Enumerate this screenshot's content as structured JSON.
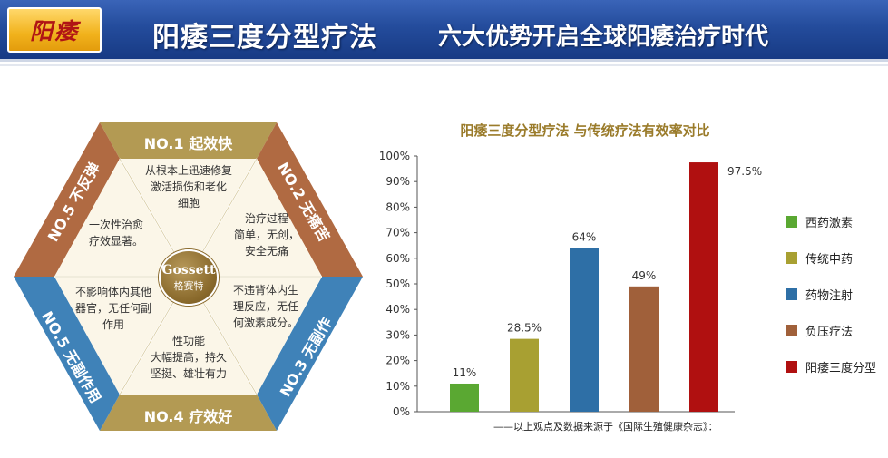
{
  "header": {
    "logo_text": "阳痿",
    "title": "阳痿三度分型疗法",
    "subtitle": "六大优势开启全球阳痿治疗时代"
  },
  "hexagon": {
    "center": {
      "brand": "Gossett",
      "sub": "格赛特"
    },
    "badges": [
      {
        "label": "NO.1  起效快",
        "color": "#b39a53"
      },
      {
        "label": "NO.2 无痛苦",
        "color": "#b06a42"
      },
      {
        "label": "NO.3 无副作",
        "color": "#3f82b8"
      },
      {
        "label": "NO.4  疗效好",
        "color": "#b39a53"
      },
      {
        "label": "NO.5 无副作用",
        "color": "#3f82b8"
      },
      {
        "label": "NO.5 不反弹",
        "color": "#b06a42"
      }
    ],
    "texts": [
      [
        "从根本上迅速修复",
        "激活损伤和老化",
        "细胞"
      ],
      [
        "治疗过程",
        "简单，无创，",
        "安全无痛"
      ],
      [
        "不违背体内生",
        "理反应，无任",
        "何激素成分。"
      ],
      [
        "性功能",
        "大幅提高，持久",
        "坚挺、雄壮有力"
      ],
      [
        "不影响体内其他",
        "器官，无任何副",
        "作用"
      ],
      [
        "一次性治愈",
        "疗效显著。"
      ]
    ]
  },
  "chart_data": {
    "type": "bar",
    "title": "阳痿三度分型疗法 与传统疗法有效率对比",
    "categories": [
      "西药激素",
      "传统中药",
      "药物注射",
      "负压疗法",
      "阳痿三度分型"
    ],
    "values": [
      11,
      28.5,
      64,
      49,
      97.5
    ],
    "value_labels": [
      "11%",
      "28.5%",
      "64%",
      "49%",
      "97.5%"
    ],
    "colors": [
      "#5aa832",
      "#a8a032",
      "#2e6fa6",
      "#a0603a",
      "#b01010"
    ],
    "ylim": [
      0,
      100
    ],
    "yticks": [
      "0%",
      "10%",
      "20%",
      "30%",
      "40%",
      "50%",
      "60%",
      "70%",
      "80%",
      "90%",
      "100%"
    ],
    "grid": false,
    "legend": "right"
  },
  "source_note": "——以上观点及数据来源于《国际生殖健康杂志》："
}
